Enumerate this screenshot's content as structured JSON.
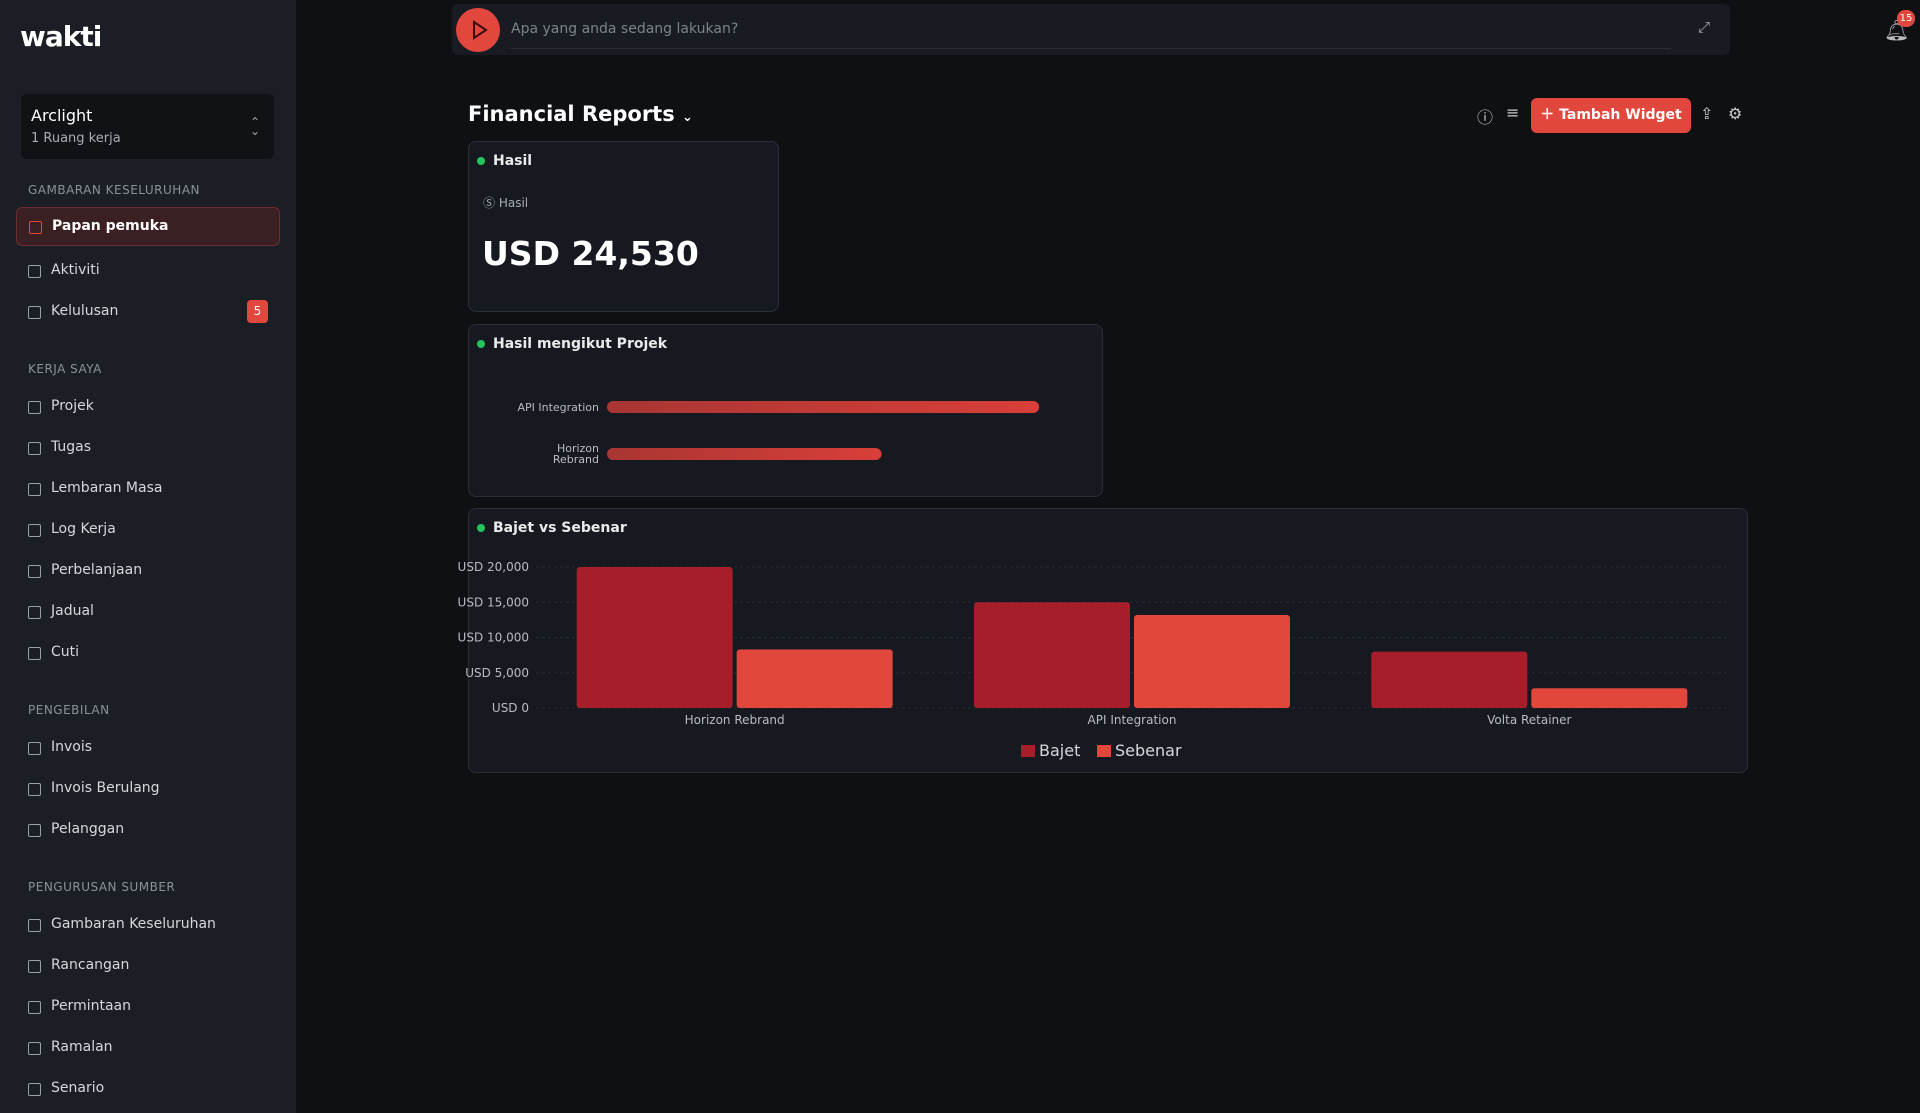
{
  "app": {
    "logo": "wakti"
  },
  "workspace": {
    "name": "Arclight",
    "subtitle": "1 Ruang kerja"
  },
  "nav": [
    {
      "heading": "GAMBARAN KESELURUHAN",
      "items": [
        {
          "label": "Papan pemuka",
          "active": true
        },
        {
          "label": "Aktiviti"
        },
        {
          "label": "Kelulusan",
          "badge": 5
        }
      ]
    },
    {
      "heading": "KERJA SAYA",
      "items": [
        {
          "label": "Projek"
        },
        {
          "label": "Tugas"
        },
        {
          "label": "Lembaran Masa"
        },
        {
          "label": "Log Kerja"
        },
        {
          "label": "Perbelanjaan"
        },
        {
          "label": "Jadual"
        },
        {
          "label": "Cuti"
        }
      ]
    },
    {
      "heading": "PENGEBILAN",
      "items": [
        {
          "label": "Invois"
        },
        {
          "label": "Invois Berulang"
        },
        {
          "label": "Pelanggan"
        }
      ]
    },
    {
      "heading": "PENGURUSAN SUMBER",
      "items": [
        {
          "label": "Gambaran Keseluruhan"
        },
        {
          "label": "Rancangan"
        },
        {
          "label": "Permintaan"
        },
        {
          "label": "Ramalan"
        },
        {
          "label": "Senario"
        }
      ]
    }
  ],
  "search": {
    "placeholder": "Apa yang anda sedang lakukan?"
  },
  "notifications": 15,
  "page": {
    "title": "Financial Reports",
    "add_widget": "Tambah Widget"
  },
  "widgets": [
    {
      "title": "Hasil",
      "label": "Hasil",
      "value": "USD 24,530"
    }
  ],
  "chart_data": [
    {
      "type": "hbar",
      "title": "Hasil mengikut Projek",
      "categories": [
        "API Integration",
        "Horizon Rebrand"
      ],
      "values": [
        15000,
        9530
      ],
      "color": "#d93f39",
      "xlim": [
        0,
        16000
      ]
    },
    {
      "type": "grouped_bar",
      "title": "Bajet vs Sebenar",
      "categories": [
        "Horizon Rebrand",
        "API Integration",
        "Volta Retainer"
      ],
      "series": [
        {
          "name": "Bajet",
          "color": "#a51e29",
          "values": [
            20000,
            15000,
            8000
          ]
        },
        {
          "name": "Sebenar",
          "color": "#e2473e",
          "values": [
            8300,
            13200,
            2800
          ]
        }
      ],
      "ylim": [
        0,
        20000
      ],
      "yticks": [
        {
          "value": 0,
          "label": "USD 0"
        },
        {
          "value": 5000,
          "label": "USD 5,000"
        },
        {
          "value": 10000,
          "label": "USD 10,000"
        },
        {
          "value": 15000,
          "label": "USD 15,000"
        },
        {
          "value": 20000,
          "label": "USD 20,000"
        }
      ],
      "grid": true,
      "legend": "bottom"
    }
  ]
}
